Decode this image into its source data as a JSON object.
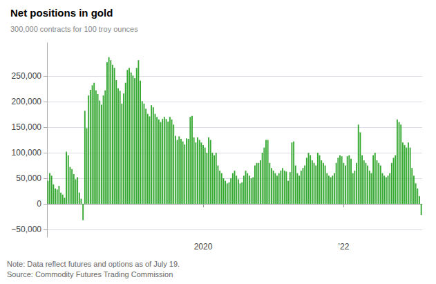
{
  "chart_data": {
    "type": "bar",
    "title": "Net positions in gold",
    "subtitle": "300,000 contracts for 100 troy ounces",
    "annotations": [
      "Note: Data reflect futures and options as of July 19.",
      "Source: Commodity Futures Trading Commission"
    ],
    "color": "#35a832",
    "grid": true,
    "ylim": [
      -65000,
      315000
    ],
    "yticks": [
      {
        "value": -50000,
        "label": "−50,000"
      },
      0,
      {
        "value": 50000,
        "label": "50,000"
      },
      {
        "value": 100000,
        "label": "100,000"
      },
      {
        "value": 150000,
        "label": "150,000"
      },
      {
        "value": 200000,
        "label": "200,000"
      },
      {
        "value": 250000,
        "label": "250,000"
      }
    ],
    "categories": [
      null,
      null,
      null,
      null,
      null,
      null,
      null,
      null,
      null,
      null,
      null,
      null,
      null,
      null,
      null,
      null,
      null,
      null,
      null,
      null,
      null,
      null,
      null,
      null,
      null,
      null,
      null,
      null,
      null,
      null,
      null,
      null,
      null,
      null,
      null,
      null,
      null,
      null,
      null,
      null,
      null,
      null,
      null,
      null,
      null,
      null,
      null,
      null,
      null,
      null,
      null,
      null,
      null,
      null,
      null,
      null,
      null,
      null,
      null,
      null,
      null,
      null,
      null,
      null,
      null,
      null,
      null,
      null,
      null,
      null,
      null,
      null,
      null,
      null,
      null,
      null,
      null,
      null,
      null,
      null,
      null,
      null,
      null,
      null,
      "2020",
      null,
      null,
      null,
      null,
      null,
      null,
      null,
      null,
      null,
      null,
      null,
      null,
      null,
      null,
      null,
      null,
      null,
      null,
      null,
      null,
      null,
      null,
      null,
      null,
      null,
      null,
      null,
      null,
      null,
      null,
      null,
      null,
      null,
      null,
      null,
      null,
      null,
      null,
      null,
      null,
      null,
      null,
      null,
      null,
      null,
      null,
      null,
      null,
      null,
      null,
      null,
      null,
      null,
      null,
      null,
      null,
      null,
      null,
      null,
      null,
      null,
      null,
      null,
      null,
      null,
      null,
      null,
      null,
      null,
      null,
      null,
      null,
      null,
      null,
      null,
      "’22",
      null,
      null,
      null,
      null,
      null,
      null,
      null,
      null,
      null,
      null,
      null,
      null,
      null,
      null,
      null,
      null,
      null,
      null,
      null,
      null,
      null,
      null,
      null,
      null,
      null,
      null,
      null,
      null,
      null,
      null,
      null,
      null,
      null,
      null,
      null,
      null,
      null,
      null,
      null,
      null,
      null,
      null
    ],
    "values": [
      45000,
      60000,
      55000,
      38000,
      30000,
      28000,
      35000,
      22000,
      18000,
      12000,
      102000,
      95000,
      72000,
      68000,
      58000,
      48000,
      52000,
      22000,
      10000,
      -32000,
      182000,
      148000,
      212000,
      223000,
      232000,
      237000,
      222000,
      215000,
      202000,
      194000,
      212000,
      222000,
      277000,
      287000,
      281000,
      272000,
      266000,
      242000,
      226000,
      221000,
      196000,
      216000,
      237000,
      262000,
      266000,
      257000,
      251000,
      246000,
      266000,
      281000,
      241000,
      201000,
      196000,
      186000,
      176000,
      171000,
      193000,
      189000,
      176000,
      170000,
      165000,
      160000,
      166000,
      170000,
      166000,
      161000,
      170000,
      165000,
      155000,
      133000,
      125000,
      132000,
      127000,
      122000,
      116000,
      128000,
      127000,
      170000,
      172000,
      130000,
      120000,
      130000,
      125000,
      120000,
      115000,
      110000,
      100000,
      130000,
      125000,
      100000,
      95000,
      100000,
      75000,
      65000,
      60000,
      50000,
      45000,
      40000,
      42000,
      50000,
      60000,
      65000,
      55000,
      48000,
      40000,
      42000,
      55000,
      65000,
      60000,
      55000,
      50000,
      52000,
      75000,
      80000,
      80000,
      85000,
      100000,
      110000,
      125000,
      125000,
      80000,
      70000,
      65000,
      60000,
      55000,
      60000,
      65000,
      70000,
      65000,
      63000,
      45000,
      62000,
      120000,
      122000,
      75000,
      60000,
      55000,
      65000,
      70000,
      75000,
      90000,
      100000,
      95000,
      85000,
      80000,
      75000,
      100000,
      95000,
      85000,
      80000,
      75000,
      60000,
      55000,
      52000,
      55000,
      60000,
      80000,
      90000,
      95000,
      93000,
      80000,
      75000,
      93000,
      95000,
      88000,
      60000,
      65000,
      80000,
      155000,
      140000,
      95000,
      85000,
      80000,
      75000,
      65000,
      60000,
      95000,
      100000,
      85000,
      80000,
      75000,
      60000,
      55000,
      52000,
      55000,
      60000,
      80000,
      90000,
      95000,
      165000,
      160000,
      155000,
      120000,
      115000,
      110000,
      120000,
      110000,
      70000,
      55000,
      40000,
      30000,
      15000,
      -22000
    ]
  }
}
